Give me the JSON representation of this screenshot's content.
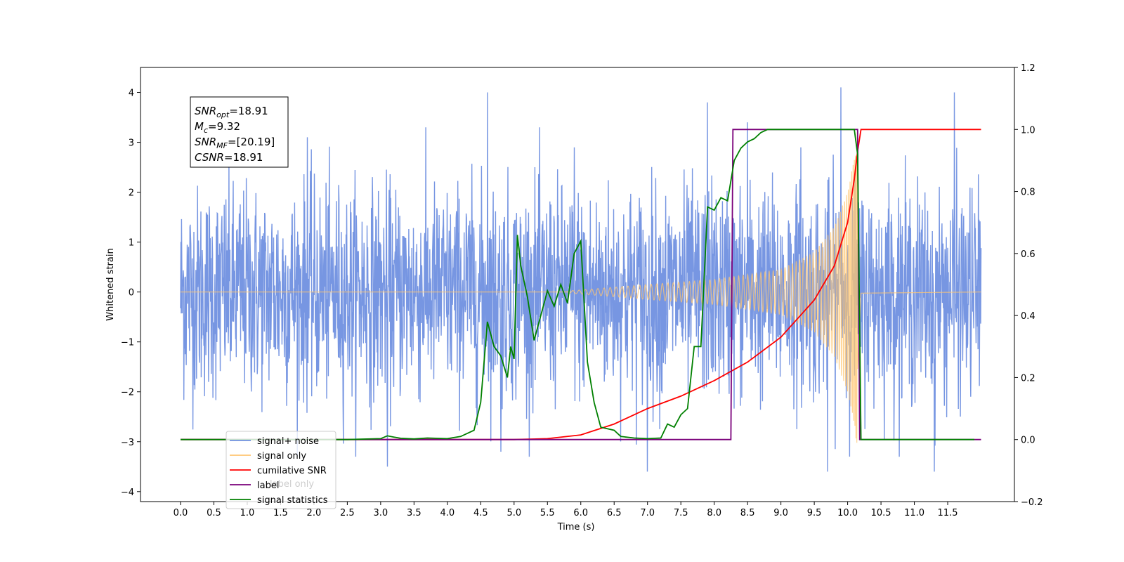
{
  "chart_data": {
    "type": "line",
    "xlabel": "Time (s)",
    "ylabel_left": "Whitened strain",
    "ylabel_right": "",
    "xlim": [
      -0.6,
      12.5
    ],
    "ylim_left": [
      -4.2,
      4.5
    ],
    "ylim_right": [
      -0.2,
      1.2
    ],
    "x_ticks": [
      "0.0",
      "0.5",
      "1.0",
      "1.5",
      "2.0",
      "2.5",
      "3.0",
      "3.5",
      "4.0",
      "4.5",
      "5.0",
      "5.5",
      "6.0",
      "6.5",
      "7.0",
      "7.5",
      "8.0",
      "8.5",
      "9.0",
      "9.5",
      "10.0",
      "10.5",
      "11.0",
      "11.5"
    ],
    "y_ticks_left": [
      -4,
      -3,
      -2,
      -1,
      0,
      1,
      2,
      3,
      4
    ],
    "y_ticks_right": [
      "−0.2",
      "0.0",
      "0.2",
      "0.4",
      "0.6",
      "0.8",
      "1.0",
      "1.2"
    ],
    "grid": false,
    "annotation": {
      "lines": [
        {
          "base": "SNR",
          "sub": "opt",
          "rest": "=18.91"
        },
        {
          "base": "M",
          "sub": "c",
          "rest": "=9.32"
        },
        {
          "base": "SNR",
          "sub": "MF",
          "rest": "=[20.19]"
        },
        {
          "base": "CSNR",
          "sub": "",
          "rest": "=18.91"
        }
      ]
    },
    "legend": {
      "placement": "lower-left",
      "entries": [
        {
          "label": "signal+ noise",
          "color": "#7090e0"
        },
        {
          "label": "signal only",
          "color": "#ffc570"
        },
        {
          "label": "cumilative SNR",
          "color": "#ff0000"
        },
        {
          "label": "label",
          "color": "#7a007a"
        },
        {
          "label": "signal statistics",
          "color": "#008000"
        }
      ],
      "hidden_behind_text": "label only"
    },
    "series": [
      {
        "name": "signal+ noise",
        "axis": "left",
        "color": "#7090e0",
        "kind": "noise",
        "x_range": [
          0.0,
          12.0
        ],
        "std": 1.05,
        "spikes": [
          [
            1.9,
            3.1
          ],
          [
            4.6,
            4.0
          ],
          [
            5.9,
            2.9
          ],
          [
            7.0,
            -3.6
          ],
          [
            7.9,
            3.8
          ],
          [
            8.5,
            3.4
          ],
          [
            9.3,
            2.9
          ],
          [
            9.7,
            -3.6
          ],
          [
            9.9,
            4.1
          ],
          [
            11.3,
            -3.6
          ],
          [
            11.6,
            4.0
          ],
          [
            3.1,
            -3.5
          ],
          [
            4.8,
            -3.2
          ]
        ]
      },
      {
        "name": "signal only",
        "axis": "left",
        "color": "#ffc570",
        "kind": "chirp",
        "t_merger": 10.15,
        "t_start": 5.8,
        "envelope": [
          [
            5.8,
            0.02
          ],
          [
            7.0,
            0.15
          ],
          [
            8.0,
            0.25
          ],
          [
            9.0,
            0.45
          ],
          [
            9.5,
            0.8
          ],
          [
            9.8,
            1.3
          ],
          [
            10.0,
            2.0
          ],
          [
            10.1,
            2.7
          ],
          [
            10.15,
            3.3
          ],
          [
            10.2,
            0.05
          ],
          [
            12.0,
            0.0
          ]
        ]
      },
      {
        "name": "cumilative SNR",
        "axis": "right",
        "x": [
          0.0,
          5.0,
          5.5,
          6.0,
          6.5,
          7.0,
          7.5,
          8.0,
          8.5,
          9.0,
          9.5,
          9.8,
          10.0,
          10.1,
          10.15,
          10.2,
          12.0
        ],
        "y": [
          0.0,
          0.0,
          0.003,
          0.015,
          0.05,
          0.1,
          0.14,
          0.19,
          0.25,
          0.33,
          0.45,
          0.56,
          0.7,
          0.84,
          0.93,
          1.0,
          1.0
        ]
      },
      {
        "name": "label",
        "axis": "right",
        "x": [
          0.0,
          8.25,
          8.28,
          10.15,
          10.18,
          12.0
        ],
        "y": [
          0.0,
          0.0,
          1.0,
          1.0,
          0.0,
          0.0
        ]
      },
      {
        "name": "signal statistics",
        "axis": "right",
        "x": [
          0.0,
          2.5,
          3.0,
          3.1,
          3.2,
          3.3,
          3.5,
          3.7,
          4.0,
          4.2,
          4.4,
          4.5,
          4.6,
          4.7,
          4.8,
          4.9,
          4.95,
          5.0,
          5.05,
          5.1,
          5.2,
          5.3,
          5.4,
          5.5,
          5.6,
          5.7,
          5.8,
          5.9,
          6.0,
          6.1,
          6.2,
          6.3,
          6.5,
          6.6,
          6.8,
          7.0,
          7.2,
          7.3,
          7.4,
          7.5,
          7.6,
          7.7,
          7.8,
          7.9,
          8.0,
          8.1,
          8.2,
          8.3,
          8.4,
          8.5,
          8.6,
          8.7,
          8.8,
          9.0,
          10.1,
          10.15,
          10.2,
          11.9
        ],
        "y": [
          0.0,
          0.0,
          0.003,
          0.012,
          0.008,
          0.004,
          0.002,
          0.005,
          0.003,
          0.01,
          0.03,
          0.12,
          0.38,
          0.3,
          0.27,
          0.2,
          0.3,
          0.26,
          0.66,
          0.56,
          0.46,
          0.32,
          0.4,
          0.48,
          0.43,
          0.5,
          0.44,
          0.6,
          0.64,
          0.25,
          0.12,
          0.04,
          0.03,
          0.01,
          0.005,
          0.003,
          0.005,
          0.05,
          0.04,
          0.08,
          0.1,
          0.3,
          0.3,
          0.75,
          0.74,
          0.78,
          0.77,
          0.9,
          0.94,
          0.96,
          0.97,
          0.99,
          1.0,
          1.0,
          1.0,
          0.92,
          0.0,
          0.0
        ]
      }
    ]
  }
}
